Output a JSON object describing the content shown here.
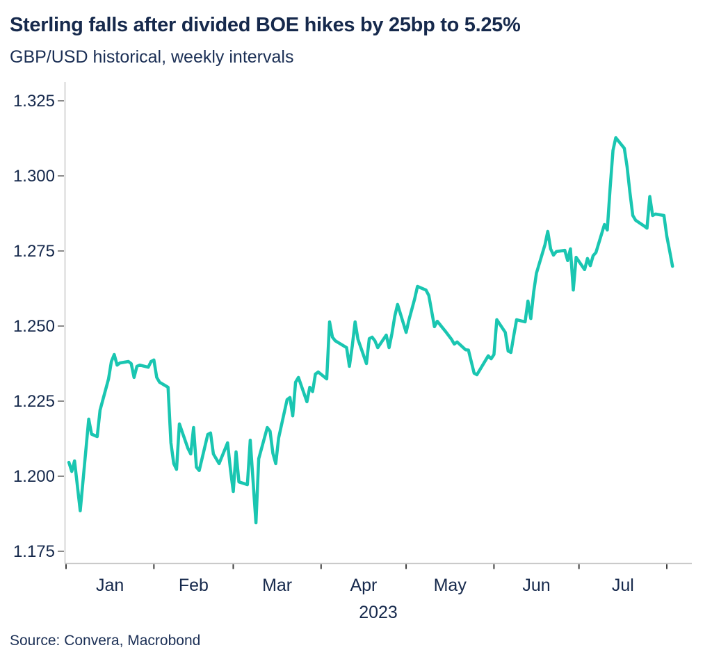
{
  "header": {
    "title": "Sterling falls after divided BOE hikes by 25bp to 5.25%",
    "subtitle": "GBP/USD historical, weekly intervals"
  },
  "footer": {
    "source": "Source: Convera, Macrobond"
  },
  "colors": {
    "background": "#FFFFFF",
    "line": "#1AC6B1",
    "text_navy": "#16294C",
    "axis_line": "#C8C8C8",
    "y_tick": "#6E6E6E",
    "x_tick": "#3F3F3F"
  },
  "chart_data": {
    "type": "line",
    "title": "Sterling falls after divided BOE hikes by 25bp to 5.25%",
    "subtitle": "GBP/USD historical, weekly intervals",
    "source": "Source: Convera, Macrobond",
    "grid": false,
    "legend": false,
    "x_axis": {
      "year_label": "2023",
      "month_labels": [
        "Jan",
        "Feb",
        "Mar",
        "Apr",
        "May",
        "Jun",
        "Jul"
      ],
      "range": [
        "2023-01-01",
        "2023-08-04"
      ]
    },
    "y_axis": {
      "ticks": [
        1.175,
        1.2,
        1.225,
        1.25,
        1.275,
        1.3,
        1.325
      ],
      "ylim": [
        1.168,
        1.332
      ],
      "decimals": 3
    },
    "series": [
      {
        "name": "GBP/USD",
        "points": [
          [
            "2023-01-02",
            1.2046
          ],
          [
            "2023-01-03",
            1.2016
          ],
          [
            "2023-01-04",
            1.2051
          ],
          [
            "2023-01-06",
            1.1885
          ],
          [
            "2023-01-09",
            1.219
          ],
          [
            "2023-01-10",
            1.214
          ],
          [
            "2023-01-12",
            1.2132
          ],
          [
            "2023-01-13",
            1.222
          ],
          [
            "2023-01-16",
            1.2324
          ],
          [
            "2023-01-17",
            1.2382
          ],
          [
            "2023-01-18",
            1.2405
          ],
          [
            "2023-01-19",
            1.237
          ],
          [
            "2023-01-20",
            1.2377
          ],
          [
            "2023-01-23",
            1.2382
          ],
          [
            "2023-01-24",
            1.2375
          ],
          [
            "2023-01-25",
            1.2329
          ],
          [
            "2023-01-26",
            1.2366
          ],
          [
            "2023-01-27",
            1.237
          ],
          [
            "2023-01-30",
            1.2363
          ],
          [
            "2023-01-31",
            1.2382
          ],
          [
            "2023-02-01",
            1.2387
          ],
          [
            "2023-02-02",
            1.2329
          ],
          [
            "2023-02-03",
            1.2313
          ],
          [
            "2023-02-06",
            1.2296
          ],
          [
            "2023-02-07",
            1.2111
          ],
          [
            "2023-02-08",
            1.2042
          ],
          [
            "2023-02-09",
            1.2023
          ],
          [
            "2023-02-10",
            1.2174
          ],
          [
            "2023-02-13",
            1.2093
          ],
          [
            "2023-02-14",
            1.2074
          ],
          [
            "2023-02-15",
            1.2162
          ],
          [
            "2023-02-16",
            1.203
          ],
          [
            "2023-02-17",
            1.2019
          ],
          [
            "2023-02-20",
            1.2139
          ],
          [
            "2023-02-21",
            1.2144
          ],
          [
            "2023-02-22",
            1.2074
          ],
          [
            "2023-02-24",
            1.2042
          ],
          [
            "2023-02-27",
            1.2111
          ],
          [
            "2023-02-28",
            1.2023
          ],
          [
            "2023-03-01",
            1.1949
          ],
          [
            "2023-03-02",
            1.2081
          ],
          [
            "2023-03-03",
            1.1981
          ],
          [
            "2023-03-06",
            1.1972
          ],
          [
            "2023-03-07",
            1.212
          ],
          [
            "2023-03-09",
            1.1845
          ],
          [
            "2023-03-10",
            1.2058
          ],
          [
            "2023-03-13",
            1.2162
          ],
          [
            "2023-03-14",
            1.215
          ],
          [
            "2023-03-15",
            1.2076
          ],
          [
            "2023-03-16",
            1.2042
          ],
          [
            "2023-03-17",
            1.2127
          ],
          [
            "2023-03-20",
            1.2255
          ],
          [
            "2023-03-21",
            1.2262
          ],
          [
            "2023-03-22",
            1.2201
          ],
          [
            "2023-03-23",
            1.2313
          ],
          [
            "2023-03-24",
            1.2329
          ],
          [
            "2023-03-27",
            1.2248
          ],
          [
            "2023-03-28",
            1.2296
          ],
          [
            "2023-03-29",
            1.2282
          ],
          [
            "2023-03-30",
            1.234
          ],
          [
            "2023-03-31",
            1.2347
          ],
          [
            "2023-04-03",
            1.2324
          ],
          [
            "2023-04-04",
            1.2514
          ],
          [
            "2023-04-05",
            1.2463
          ],
          [
            "2023-04-06",
            1.2451
          ],
          [
            "2023-04-10",
            1.2428
          ],
          [
            "2023-04-11",
            1.2366
          ],
          [
            "2023-04-12",
            1.2433
          ],
          [
            "2023-04-13",
            1.2514
          ],
          [
            "2023-04-14",
            1.2456
          ],
          [
            "2023-04-17",
            1.2375
          ],
          [
            "2023-04-18",
            1.2458
          ],
          [
            "2023-04-19",
            1.2463
          ],
          [
            "2023-04-20",
            1.2451
          ],
          [
            "2023-04-21",
            1.2428
          ],
          [
            "2023-04-24",
            1.247
          ],
          [
            "2023-04-25",
            1.2428
          ],
          [
            "2023-04-26",
            1.2475
          ],
          [
            "2023-04-27",
            1.2533
          ],
          [
            "2023-04-28",
            1.2572
          ],
          [
            "2023-05-01",
            1.2479
          ],
          [
            "2023-05-02",
            1.252
          ],
          [
            "2023-05-04",
            1.259
          ],
          [
            "2023-05-05",
            1.2632
          ],
          [
            "2023-05-08",
            1.262
          ],
          [
            "2023-05-09",
            1.2602
          ],
          [
            "2023-05-11",
            1.2498
          ],
          [
            "2023-05-12",
            1.2516
          ],
          [
            "2023-05-15",
            1.2481
          ],
          [
            "2023-05-17",
            1.2456
          ],
          [
            "2023-05-18",
            1.244
          ],
          [
            "2023-05-19",
            1.2447
          ],
          [
            "2023-05-22",
            1.2421
          ],
          [
            "2023-05-23",
            1.242
          ],
          [
            "2023-05-25",
            1.2343
          ],
          [
            "2023-05-26",
            1.2338
          ],
          [
            "2023-05-30",
            1.2401
          ],
          [
            "2023-05-31",
            1.2391
          ],
          [
            "2023-06-01",
            1.2405
          ],
          [
            "2023-06-02",
            1.2521
          ],
          [
            "2023-06-05",
            1.2479
          ],
          [
            "2023-06-06",
            1.2417
          ],
          [
            "2023-06-07",
            1.2412
          ],
          [
            "2023-06-08",
            1.2468
          ],
          [
            "2023-06-09",
            1.2521
          ],
          [
            "2023-06-12",
            1.2514
          ],
          [
            "2023-06-13",
            1.2583
          ],
          [
            "2023-06-14",
            1.2525
          ],
          [
            "2023-06-15",
            1.2613
          ],
          [
            "2023-06-16",
            1.2676
          ],
          [
            "2023-06-19",
            1.2771
          ],
          [
            "2023-06-20",
            1.2815
          ],
          [
            "2023-06-21",
            1.2757
          ],
          [
            "2023-06-22",
            1.2736
          ],
          [
            "2023-06-23",
            1.2748
          ],
          [
            "2023-06-26",
            1.2752
          ],
          [
            "2023-06-27",
            1.2718
          ],
          [
            "2023-06-28",
            1.2757
          ],
          [
            "2023-06-29",
            1.262
          ],
          [
            "2023-06-30",
            1.2729
          ],
          [
            "2023-07-03",
            1.2688
          ],
          [
            "2023-07-04",
            1.2725
          ],
          [
            "2023-07-05",
            1.2701
          ],
          [
            "2023-07-06",
            1.2734
          ],
          [
            "2023-07-07",
            1.2745
          ],
          [
            "2023-07-10",
            1.2838
          ],
          [
            "2023-07-11",
            1.282
          ],
          [
            "2023-07-12",
            1.296
          ],
          [
            "2023-07-13",
            1.3085
          ],
          [
            "2023-07-14",
            1.3127
          ],
          [
            "2023-07-17",
            1.3092
          ],
          [
            "2023-07-18",
            1.303
          ],
          [
            "2023-07-19",
            1.2944
          ],
          [
            "2023-07-20",
            1.2868
          ],
          [
            "2023-07-21",
            1.2852
          ],
          [
            "2023-07-24",
            1.2833
          ],
          [
            "2023-07-25",
            1.2826
          ],
          [
            "2023-07-26",
            1.2931
          ],
          [
            "2023-07-27",
            1.2868
          ],
          [
            "2023-07-28",
            1.2873
          ],
          [
            "2023-07-31",
            1.2868
          ],
          [
            "2023-08-01",
            1.2799
          ],
          [
            "2023-08-02",
            1.275
          ],
          [
            "2023-08-03",
            1.2699
          ]
        ]
      }
    ]
  }
}
